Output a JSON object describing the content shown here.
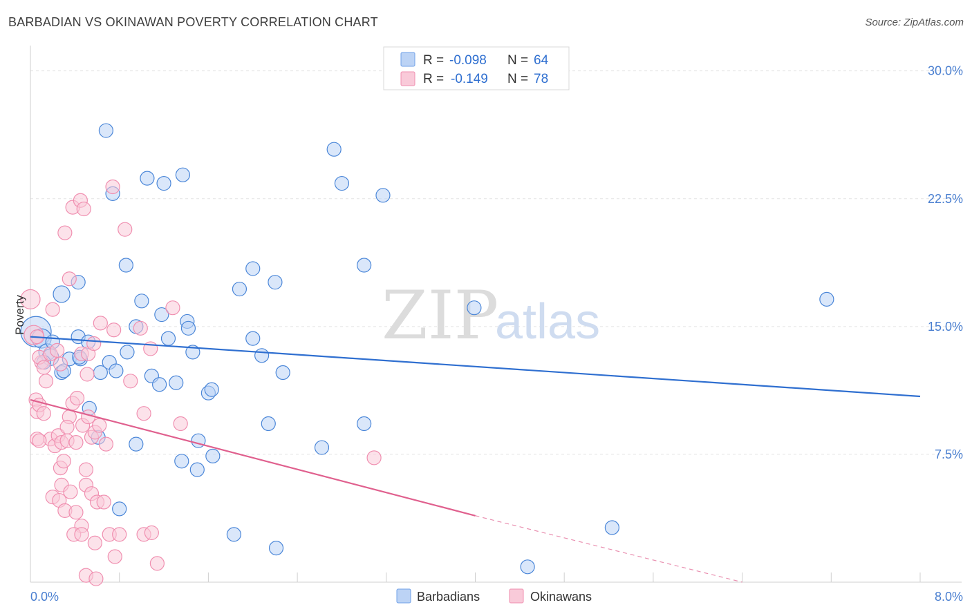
{
  "title": "BARBADIAN VS OKINAWAN POVERTY CORRELATION CHART",
  "source": "Source: ZipAtlas.com",
  "watermark": {
    "zip": "ZIP",
    "atlas": "atlas"
  },
  "legend": {
    "rows": [
      {
        "r_label": "R =",
        "r_value": "-0.098",
        "n_label": "N =",
        "n_value": "64",
        "color": "#6fa0e8",
        "fill": "#bcd3f5"
      },
      {
        "r_label": "R =",
        "r_value": "-0.149",
        "n_label": "N =",
        "n_value": "78",
        "color": "#f08fb0",
        "fill": "#f9cad9"
      }
    ]
  },
  "bottom_legend": [
    {
      "label": "Barbadians",
      "color": "#6fa0e8",
      "fill": "#bcd3f5"
    },
    {
      "label": "Okinawans",
      "color": "#f08fb0",
      "fill": "#f9cad9"
    }
  ],
  "chart_data": {
    "type": "scatter",
    "xlabel": "",
    "ylabel": "Poverty",
    "xlim": [
      0,
      8
    ],
    "ylim": [
      0,
      31
    ],
    "x_tick_labels": [
      "0.0%",
      "8.0%"
    ],
    "y_ticks": [
      7.5,
      15.0,
      22.5,
      30.0
    ],
    "y_tick_labels": [
      "7.5%",
      "15.0%",
      "22.5%",
      "30.0%"
    ],
    "grid": true,
    "legend_position": "top-center",
    "series": [
      {
        "name": "Barbadians",
        "color": "#4a86d8",
        "fill": "#bcd3f5",
        "trend": {
          "x0": 0.0,
          "y0": 14.4,
          "x1": 8.0,
          "y1": 10.9,
          "color": "#2f6fd0"
        },
        "points": [
          [
            0.05,
            14.7,
            22
          ],
          [
            0.1,
            14.3,
            14
          ],
          [
            0.15,
            13.5,
            12
          ],
          [
            0.18,
            13.2,
            12
          ],
          [
            0.2,
            14.1,
            10
          ],
          [
            0.12,
            12.9,
            10
          ],
          [
            0.28,
            12.3,
            10
          ],
          [
            0.3,
            12.4,
            10
          ],
          [
            0.35,
            13.1,
            10
          ],
          [
            0.45,
            13.1,
            10
          ],
          [
            0.43,
            14.4,
            10
          ],
          [
            0.52,
            14.1,
            10
          ],
          [
            0.44,
            13.2,
            10
          ],
          [
            0.28,
            16.9,
            12
          ],
          [
            0.43,
            17.6,
            10
          ],
          [
            0.68,
            26.5,
            10
          ],
          [
            0.74,
            22.8,
            10
          ],
          [
            0.86,
            18.6,
            10
          ],
          [
            0.95,
            15.0,
            10
          ],
          [
            1.0,
            16.5,
            10
          ],
          [
            1.05,
            23.7,
            10
          ],
          [
            1.18,
            15.7,
            10
          ],
          [
            1.2,
            23.4,
            10
          ],
          [
            1.37,
            23.9,
            10
          ],
          [
            1.41,
            15.3,
            10
          ],
          [
            1.42,
            14.9,
            10
          ],
          [
            0.87,
            13.5,
            10
          ],
          [
            0.71,
            12.9,
            10
          ],
          [
            0.77,
            12.4,
            10
          ],
          [
            0.63,
            12.3,
            10
          ],
          [
            0.53,
            10.2,
            10
          ],
          [
            0.61,
            8.5,
            10
          ],
          [
            0.95,
            8.1,
            10
          ],
          [
            1.09,
            12.1,
            10
          ],
          [
            1.16,
            11.6,
            10
          ],
          [
            1.31,
            11.7,
            10
          ],
          [
            1.24,
            14.3,
            10
          ],
          [
            1.46,
            13.5,
            10
          ],
          [
            1.51,
            8.3,
            10
          ],
          [
            1.6,
            11.1,
            10
          ],
          [
            1.63,
            11.3,
            10
          ],
          [
            1.64,
            7.4,
            10
          ],
          [
            1.36,
            7.1,
            10
          ],
          [
            1.5,
            6.6,
            10
          ],
          [
            0.8,
            4.3,
            10
          ],
          [
            1.88,
            17.2,
            10
          ],
          [
            2.0,
            18.4,
            10
          ],
          [
            2.0,
            14.3,
            10
          ],
          [
            2.08,
            13.3,
            10
          ],
          [
            2.2,
            17.6,
            10
          ],
          [
            2.27,
            12.3,
            10
          ],
          [
            2.14,
            9.3,
            10
          ],
          [
            2.73,
            25.4,
            10
          ],
          [
            2.8,
            23.4,
            10
          ],
          [
            3.0,
            18.6,
            10
          ],
          [
            3.17,
            22.7,
            10
          ],
          [
            2.62,
            7.9,
            10
          ],
          [
            3.0,
            9.3,
            10
          ],
          [
            3.99,
            16.1,
            10
          ],
          [
            1.83,
            2.8,
            10
          ],
          [
            2.21,
            2.0,
            10
          ],
          [
            5.23,
            3.2,
            10
          ],
          [
            4.47,
            0.9,
            10
          ],
          [
            7.16,
            16.6,
            10
          ]
        ]
      },
      {
        "name": "Okinawans",
        "color": "#f08fb0",
        "fill": "#f9cad9",
        "trend": {
          "x0": 0.0,
          "y0": 10.7,
          "x1": 4.0,
          "y1": 3.9,
          "color": "#e0608e"
        },
        "trend_dash": {
          "x0": 4.0,
          "y0": 3.9,
          "x1": 6.4,
          "y1": 0.0
        },
        "points": [
          [
            0.0,
            16.6,
            14
          ],
          [
            0.03,
            14.5,
            14
          ],
          [
            0.06,
            14.4,
            10
          ],
          [
            0.1,
            12.9,
            10
          ],
          [
            0.08,
            13.2,
            10
          ],
          [
            0.12,
            12.6,
            10
          ],
          [
            0.14,
            11.8,
            10
          ],
          [
            0.18,
            13.4,
            10
          ],
          [
            0.2,
            16.0,
            10
          ],
          [
            0.24,
            13.6,
            10
          ],
          [
            0.27,
            12.8,
            10
          ],
          [
            0.31,
            20.5,
            10
          ],
          [
            0.35,
            17.8,
            10
          ],
          [
            0.38,
            22.0,
            10
          ],
          [
            0.45,
            22.4,
            10
          ],
          [
            0.48,
            21.9,
            10
          ],
          [
            0.46,
            13.4,
            10
          ],
          [
            0.52,
            13.4,
            10
          ],
          [
            0.51,
            12.2,
            10
          ],
          [
            0.57,
            14.0,
            10
          ],
          [
            0.05,
            10.7,
            10
          ],
          [
            0.06,
            10.0,
            10
          ],
          [
            0.08,
            10.4,
            10
          ],
          [
            0.12,
            9.9,
            10
          ],
          [
            0.18,
            8.4,
            10
          ],
          [
            0.22,
            8.0,
            10
          ],
          [
            0.25,
            8.6,
            10
          ],
          [
            0.27,
            6.7,
            10
          ],
          [
            0.3,
            7.1,
            10
          ],
          [
            0.35,
            9.7,
            10
          ],
          [
            0.33,
            9.1,
            10
          ],
          [
            0.38,
            10.5,
            10
          ],
          [
            0.42,
            10.8,
            10
          ],
          [
            0.47,
            9.2,
            10
          ],
          [
            0.52,
            9.7,
            10
          ],
          [
            0.55,
            8.5,
            10
          ],
          [
            0.58,
            8.8,
            10
          ],
          [
            0.62,
            9.2,
            10
          ],
          [
            0.68,
            8.1,
            10
          ],
          [
            0.63,
            15.2,
            10
          ],
          [
            0.75,
            14.8,
            10
          ],
          [
            0.74,
            23.2,
            10
          ],
          [
            0.85,
            20.7,
            10
          ],
          [
            0.9,
            11.8,
            10
          ],
          [
            0.99,
            14.9,
            10
          ],
          [
            1.02,
            9.9,
            10
          ],
          [
            1.08,
            13.7,
            10
          ],
          [
            1.28,
            16.1,
            10
          ],
          [
            1.35,
            9.3,
            10
          ],
          [
            0.2,
            5.0,
            10
          ],
          [
            0.26,
            4.8,
            10
          ],
          [
            0.28,
            5.7,
            10
          ],
          [
            0.31,
            4.2,
            10
          ],
          [
            0.36,
            5.3,
            10
          ],
          [
            0.41,
            4.1,
            10
          ],
          [
            0.46,
            3.3,
            10
          ],
          [
            0.5,
            5.7,
            10
          ],
          [
            0.55,
            5.2,
            10
          ],
          [
            0.6,
            4.7,
            10
          ],
          [
            0.66,
            4.7,
            10
          ],
          [
            0.71,
            2.8,
            10
          ],
          [
            0.8,
            2.8,
            10
          ],
          [
            0.39,
            2.8,
            10
          ],
          [
            0.46,
            2.8,
            10
          ],
          [
            0.58,
            2.3,
            10
          ],
          [
            0.76,
            1.5,
            10
          ],
          [
            1.02,
            2.8,
            10
          ],
          [
            1.09,
            2.9,
            10
          ],
          [
            1.14,
            1.1,
            10
          ],
          [
            0.5,
            0.4,
            10
          ],
          [
            0.59,
            0.2,
            10
          ],
          [
            0.06,
            8.4,
            10
          ],
          [
            0.08,
            8.3,
            10
          ],
          [
            0.28,
            8.2,
            10
          ],
          [
            0.33,
            8.3,
            10
          ],
          [
            0.41,
            8.2,
            10
          ],
          [
            0.5,
            6.6,
            10
          ],
          [
            3.09,
            7.3,
            10
          ]
        ]
      }
    ]
  }
}
